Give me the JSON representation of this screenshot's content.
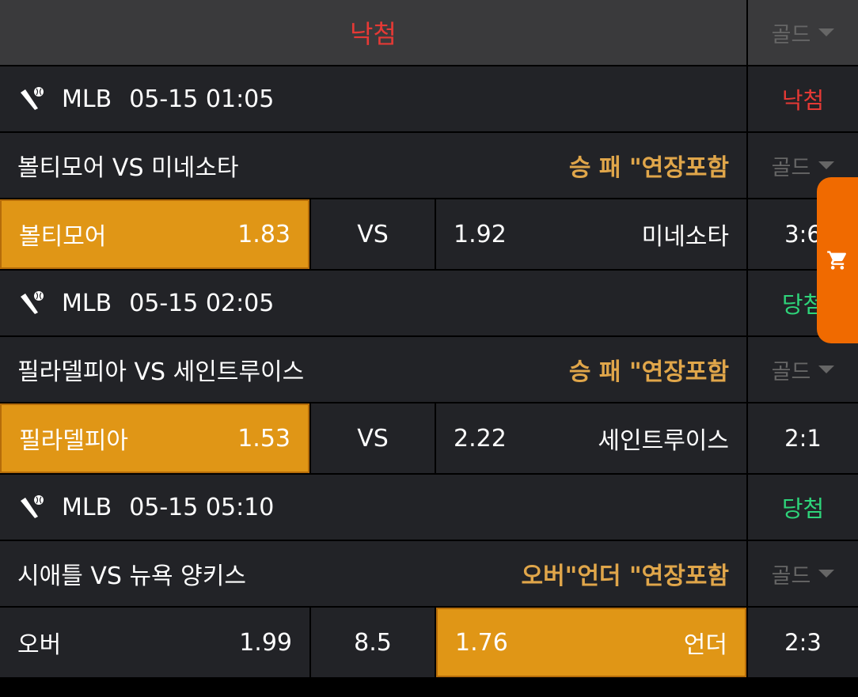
{
  "header": {
    "status": "낙첨",
    "side_select": "골드"
  },
  "games": [
    {
      "league": "MLB",
      "datetime": "05-15 01:05",
      "result": "낙첨",
      "result_color": "#e53935",
      "match": "볼티모어 VS 미네소타",
      "bet_type": "승 패 \"연장포함",
      "select": "골드",
      "home": "볼티모어",
      "home_odds": "1.83",
      "mid": "VS",
      "away_odds": "1.92",
      "away": "미네소타",
      "score": "3:6",
      "selected": "home"
    },
    {
      "league": "MLB",
      "datetime": "05-15 02:05",
      "result": "당첨",
      "result_color": "#2ed47a",
      "match": "필라델피아 VS 세인트루이스",
      "bet_type": "승 패 \"연장포함",
      "select": "골드",
      "home": "필라델피아",
      "home_odds": "1.53",
      "mid": "VS",
      "away_odds": "2.22",
      "away": "세인트루이스",
      "score": "2:1",
      "selected": "home"
    },
    {
      "league": "MLB",
      "datetime": "05-15 05:10",
      "result": "당첨",
      "result_color": "#2ed47a",
      "match": "시애틀 VS 뉴욕 양키스",
      "bet_type": "오버\"언더 \"연장포함",
      "select": "골드",
      "home": "오버",
      "home_odds": "1.99",
      "mid": "8.5",
      "away_odds": "1.76",
      "away": "언더",
      "score": "2:3",
      "selected": "away"
    }
  ],
  "cart": {
    "icon": "cart-icon"
  }
}
